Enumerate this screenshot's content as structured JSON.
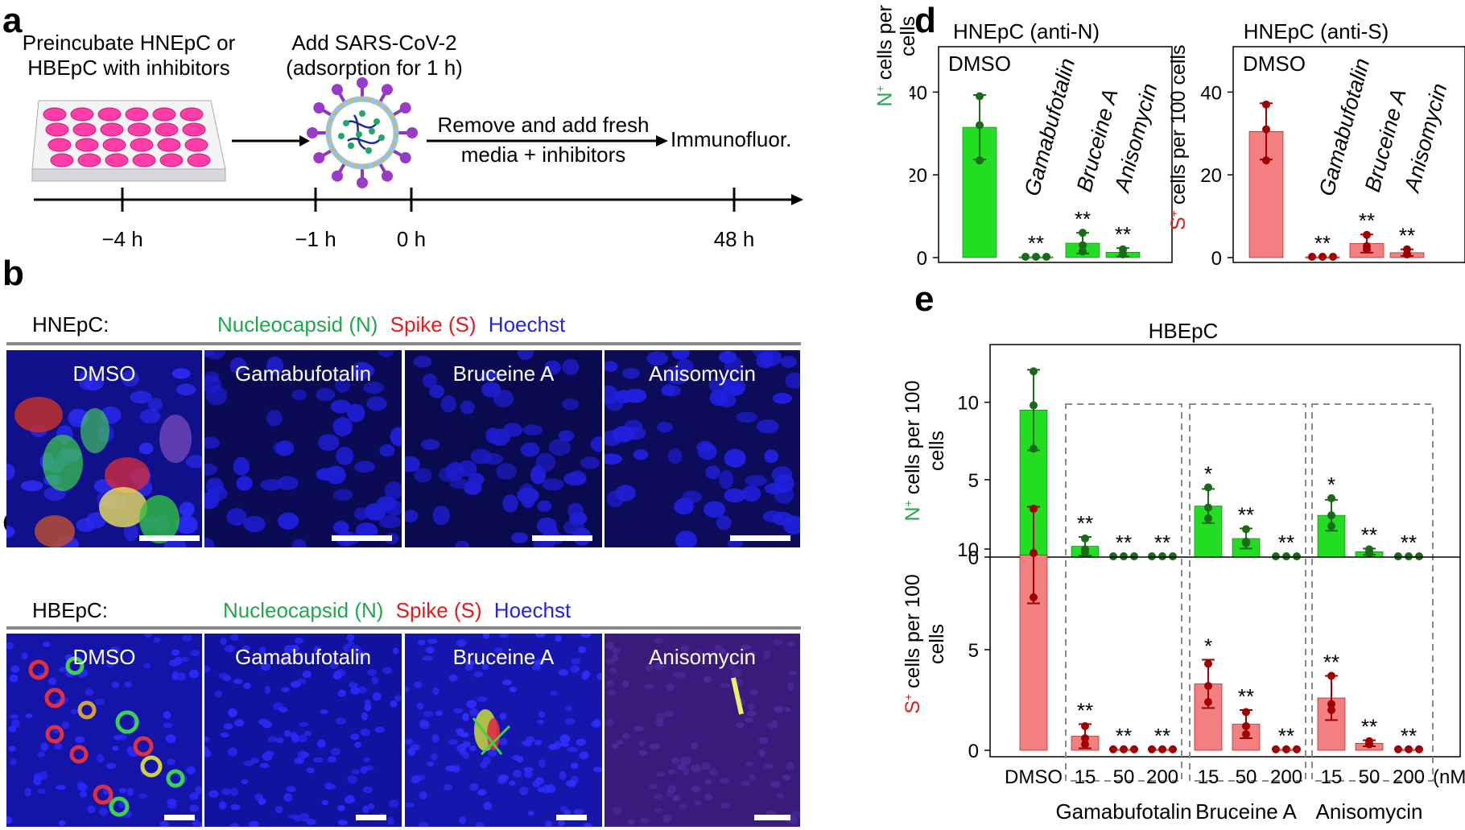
{
  "labels": {
    "a": "a",
    "b": "b",
    "c": "c",
    "d": "d",
    "e": "e"
  },
  "colors": {
    "green_bar": "#22dd22",
    "green_dot": "#1a6a1a",
    "red_bar": "#f28080",
    "red_dot": "#a00000",
    "n_label": "#1fa84a",
    "s_label": "#e21b1b",
    "hoechst": "#2323e0",
    "plate": "#ff3ca8"
  },
  "panel_a": {
    "step1": [
      "Preincubate HNEpC or",
      "HBEpC with inhibitors"
    ],
    "step2": [
      "Add SARS-CoV-2",
      "(adsorption for 1 h)"
    ],
    "step3": [
      "Remove and add fresh",
      "media + inhibitors"
    ],
    "step4": "Immunofluor.",
    "ticks": [
      "−4 h",
      "−1 h",
      "0 h",
      "48 h"
    ],
    "icons": [
      "well-plate-icon",
      "virus-icon",
      "arrow-right-icon"
    ]
  },
  "panel_b": {
    "cell": "HNEpC:",
    "stain_n": "Nucleocapsid (N)",
    "stain_s": "Spike (S)",
    "stain_h": "Hoechst",
    "images": [
      "DMSO",
      "Gamabufotalin",
      "Bruceine A",
      "Anisomycin"
    ]
  },
  "panel_c": {
    "cell": "HBEpC:",
    "stain_n": "Nucleocapsid (N)",
    "stain_s": "Spike (S)",
    "stain_h": "Hoechst",
    "images": [
      "DMSO",
      "Gamabufotalin",
      "Bruceine A",
      "Anisomycin"
    ]
  },
  "panel_d": {
    "left_title": "HNEpC (anti-N)",
    "right_title": "HNEpC (anti-S)",
    "left_ylabel_sup": "N",
    "right_ylabel_sup": "S",
    "ylabel_rest": "cells per 100 cells",
    "ylabel_line1": "cells per 100",
    "ylabel_line2": "cells",
    "dmso_tag": "DMSO",
    "drug_labels": [
      "Gamabufotalin",
      "Bruceine A",
      "Anisomycin"
    ],
    "y_ticks": [
      "0",
      "20",
      "40"
    ]
  },
  "panel_e": {
    "title": "HBEpC",
    "x_labels": [
      "DMSO",
      "15",
      "50",
      "200",
      "15",
      "50",
      "200",
      "15",
      "50",
      "200"
    ],
    "unit": "(nM)",
    "groups": [
      "Gamabufotalin",
      "Bruceine A",
      "Anisomycin"
    ],
    "y_ticks": [
      "0",
      "5",
      "10"
    ]
  },
  "chart_data": [
    {
      "type": "bar",
      "title": "HNEpC (anti-N)",
      "ylabel": "N+ cells per 100 cells",
      "categories": [
        "DMSO",
        "Gamabufotalin",
        "Bruceine A",
        "Anisomycin"
      ],
      "values": [
        31.5,
        0.2,
        3.5,
        1.3
      ],
      "errors": [
        7.8,
        0,
        2.5,
        1.0
      ],
      "points": [
        [
          39,
          32,
          23.5
        ],
        [
          0.2,
          0.2,
          0.2
        ],
        [
          6,
          3,
          1.5
        ],
        [
          2,
          1,
          0.8
        ]
      ],
      "significance": [
        "",
        "**",
        "**",
        "**"
      ],
      "ylim": [
        0,
        50
      ],
      "color": "#22dd22"
    },
    {
      "type": "bar",
      "title": "HNEpC (anti-S)",
      "ylabel": "S+ cells per 100 cells",
      "categories": [
        "DMSO",
        "Gamabufotalin",
        "Bruceine A",
        "Anisomycin"
      ],
      "values": [
        30.5,
        0.2,
        3.4,
        1.2
      ],
      "errors": [
        6.8,
        0,
        2.2,
        0.8
      ],
      "points": [
        [
          37,
          31,
          23.5
        ],
        [
          0.2,
          0.2,
          0.2
        ],
        [
          5.5,
          2.8,
          2
        ],
        [
          2,
          0.8,
          0.8
        ]
      ],
      "significance": [
        "",
        "**",
        "**",
        "**"
      ],
      "ylim": [
        0,
        50
      ],
      "color": "#f28080"
    },
    {
      "type": "bar",
      "title": "HBEpC",
      "ylabel": "N+ cells per 100 cells",
      "categories": [
        "DMSO",
        "Gamabufotalin 15",
        "Gamabufotalin 50",
        "Gamabufotalin 200",
        "Bruceine A 15",
        "Bruceine A 50",
        "Bruceine A 200",
        "Anisomycin 15",
        "Anisomycin 50",
        "Anisomycin 200"
      ],
      "values": [
        9.5,
        0.7,
        0.05,
        0.05,
        3.3,
        1.2,
        0.05,
        2.7,
        0.35,
        0.05
      ],
      "errors": [
        2.6,
        0.6,
        0,
        0,
        1.1,
        0.65,
        0,
        1.0,
        0.2,
        0
      ],
      "points": [
        [
          12,
          9.8,
          7
        ],
        [
          1.2,
          0.5,
          0.3
        ],
        [
          0.05,
          0.05,
          0.05
        ],
        [
          0.05,
          0.05,
          0.05
        ],
        [
          4.5,
          3.2,
          2.5
        ],
        [
          1.8,
          1.0,
          0.9
        ],
        [
          0.05,
          0.05,
          0.05
        ],
        [
          3.8,
          2.7,
          2.0
        ],
        [
          0.5,
          0.3,
          0.25
        ],
        [
          0.05,
          0.05,
          0.05
        ]
      ],
      "significance": [
        "",
        "**",
        "**",
        "**",
        "*",
        "**",
        "**",
        "*",
        "**",
        "**"
      ],
      "ylim": [
        0,
        13
      ],
      "color": "#22dd22"
    },
    {
      "type": "bar",
      "title": "",
      "ylabel": "S+ cells per 100 cells",
      "xlabel": "(nM)",
      "categories": [
        "DMSO",
        "Gamabufotalin 15",
        "Gamabufotalin 50",
        "Gamabufotalin 200",
        "Bruceine A 15",
        "Bruceine A 50",
        "Bruceine A 200",
        "Anisomycin 15",
        "Anisomycin 50",
        "Anisomycin 200"
      ],
      "values": [
        9.7,
        0.7,
        0.05,
        0.05,
        3.3,
        1.3,
        0.05,
        2.6,
        0.35,
        0.05
      ],
      "errors": [
        2.4,
        0.6,
        0,
        0,
        1.2,
        0.7,
        0,
        1.1,
        0.15,
        0
      ],
      "points": [
        [
          12,
          9.8,
          7.6
        ],
        [
          1.2,
          0.6,
          0.3
        ],
        [
          0.05,
          0.05,
          0.05
        ],
        [
          0.05,
          0.05,
          0.05
        ],
        [
          4.3,
          3.2,
          2.4
        ],
        [
          1.9,
          1.2,
          0.8
        ],
        [
          0.05,
          0.05,
          0.05
        ],
        [
          3.7,
          2.3,
          2.0
        ],
        [
          0.45,
          0.3,
          0.3
        ],
        [
          0.05,
          0.05,
          0.05
        ]
      ],
      "significance": [
        "",
        "**",
        "**",
        "**",
        "*",
        "**",
        "**",
        "**",
        "**",
        "**"
      ],
      "ylim": [
        0,
        12
      ],
      "color": "#f28080"
    }
  ]
}
